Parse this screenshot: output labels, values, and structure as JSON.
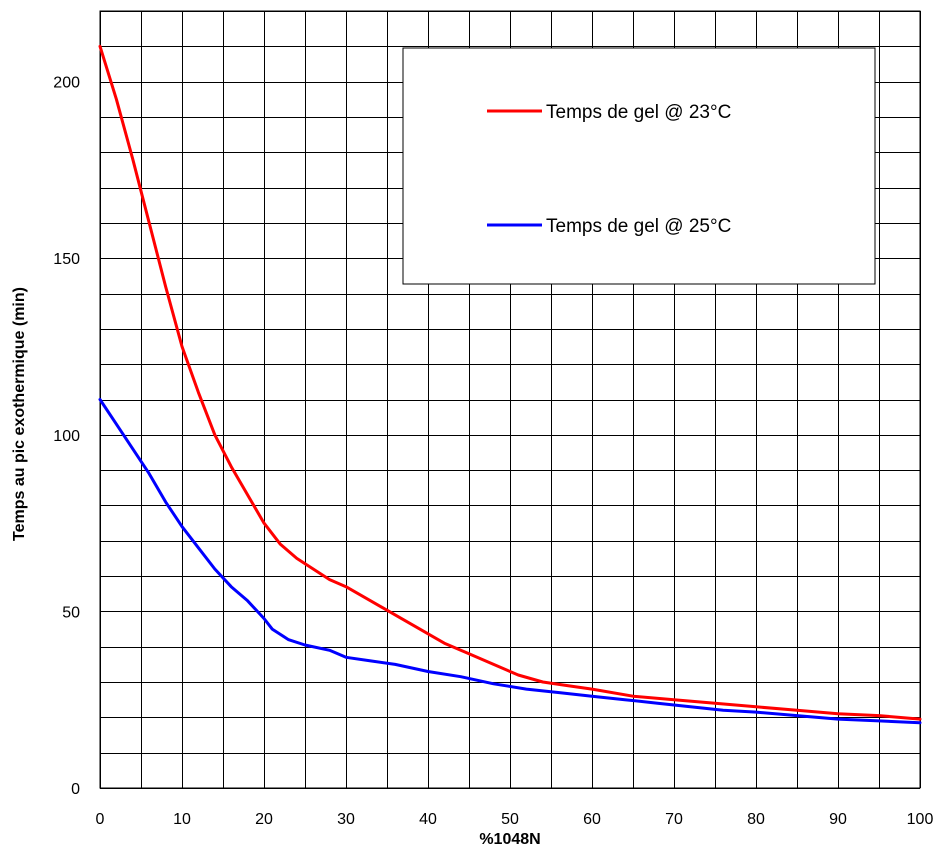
{
  "chart_data": {
    "type": "line",
    "xlabel": "%1048N",
    "ylabel": "Temps au pic exothermique (min)",
    "xlim": [
      0,
      100
    ],
    "ylim": [
      0,
      220
    ],
    "x_ticks": [
      0,
      10,
      20,
      30,
      40,
      50,
      60,
      70,
      80,
      90,
      100
    ],
    "y_ticks": [
      0,
      50,
      100,
      150,
      200
    ],
    "grid": true,
    "legend_position": "top-right",
    "series": [
      {
        "name": "Temps de gel @ 23°C",
        "color": "#ff0000",
        "x": [
          0,
          2,
          4,
          6,
          8,
          10,
          12,
          14,
          16,
          18,
          20,
          22,
          24,
          26,
          28,
          30,
          33,
          36,
          39,
          42,
          45,
          48,
          51,
          54,
          57,
          60,
          65,
          70,
          75,
          80,
          85,
          90,
          95,
          100
        ],
        "y": [
          210,
          195,
          178,
          160,
          142,
          125,
          112,
          100,
          91,
          83,
          75,
          69,
          65,
          62,
          59,
          57,
          53,
          49,
          45,
          41,
          38,
          35,
          32,
          30,
          29,
          28,
          26,
          25,
          24,
          23,
          22,
          21,
          20.5,
          19.5
        ]
      },
      {
        "name": "Temps de gel @ 25°C",
        "color": "#0000ff",
        "x": [
          0,
          2,
          4,
          6,
          8,
          10,
          12,
          14,
          16,
          18,
          20,
          21,
          23,
          25,
          28,
          30,
          33,
          36,
          40,
          44,
          48,
          52,
          56,
          60,
          64,
          68,
          72,
          76,
          80,
          85,
          90,
          95,
          100
        ],
        "y": [
          110,
          103,
          96,
          89,
          81,
          74,
          68,
          62,
          57,
          53,
          48,
          45,
          42,
          40.5,
          39,
          37,
          36,
          35,
          33,
          31.5,
          29.5,
          28,
          27,
          26,
          25,
          24,
          23,
          22,
          21.5,
          20.5,
          19.5,
          19,
          18.5
        ]
      }
    ]
  }
}
